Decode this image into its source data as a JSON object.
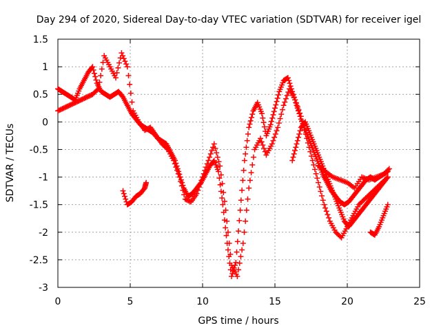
{
  "chart_data": {
    "type": "scatter",
    "title": "Day 294 of 2020, Sidereal Day-to-day VTEC variation (SDTVAR) for receiver igel",
    "xlabel": "GPS time / hours",
    "ylabel": "SDTVAR / TECUs",
    "xlim": [
      0,
      25
    ],
    "ylim": [
      -3,
      1.5
    ],
    "xticks": [
      "0",
      "5",
      "10",
      "15",
      "20",
      "25"
    ],
    "yticks": [
      "-3",
      "-2.5",
      "-2",
      "-1.5",
      "-1",
      "-0.5",
      "0",
      "0.5",
      "1",
      "1.5"
    ],
    "grid": true,
    "marker": "+",
    "color": "#ff0000",
    "series": [
      {
        "x": [
          0.0,
          0.3,
          0.6,
          0.9,
          1.2,
          1.5,
          1.8,
          2.1,
          2.4,
          2.7,
          3.0,
          3.3,
          3.6,
          3.9,
          4.2,
          4.5,
          4.8,
          5.1,
          5.4,
          5.7,
          6.0,
          6.3,
          6.6,
          6.9,
          7.2,
          7.5,
          7.8,
          8.1,
          8.4,
          8.7,
          9.0,
          9.3,
          9.6,
          9.9,
          10.2,
          10.5,
          10.8,
          11.1,
          11.4,
          11.7,
          12.0,
          12.3,
          12.6,
          12.9,
          13.2,
          13.5,
          13.8,
          14.1,
          14.4,
          14.7,
          15.0,
          15.3,
          15.6,
          15.9,
          16.2,
          16.5,
          16.8,
          17.1,
          17.4,
          17.7,
          18.0,
          18.3,
          18.6,
          18.9,
          19.2,
          19.5,
          19.8,
          20.1,
          20.4,
          20.7,
          21.0,
          21.3,
          21.6,
          21.9,
          22.2,
          22.5,
          22.8
        ],
        "y": [
          0.6,
          0.55,
          0.5,
          0.45,
          0.4,
          0.6,
          0.75,
          0.9,
          1.0,
          0.7,
          0.55,
          0.5,
          0.45,
          0.5,
          0.55,
          0.45,
          0.3,
          0.15,
          0.05,
          -0.05,
          -0.1,
          -0.15,
          -0.2,
          -0.3,
          -0.35,
          -0.4,
          -0.55,
          -0.7,
          -0.95,
          -1.2,
          -1.35,
          -1.3,
          -1.2,
          -1.1,
          -0.95,
          -0.8,
          -0.7,
          -0.9,
          -1.5,
          -2.2,
          -2.8,
          -2.55,
          -1.6,
          -0.7,
          -0.1,
          0.2,
          0.35,
          0.15,
          -0.25,
          -0.05,
          0.25,
          0.55,
          0.75,
          0.8,
          0.55,
          0.3,
          0.05,
          -0.15,
          -0.35,
          -0.55,
          -0.75,
          -0.95,
          -1.1,
          -1.25,
          -1.35,
          -1.45,
          -1.5,
          -1.45,
          -1.35,
          -1.25,
          -1.15,
          -1.05,
          -1.0,
          -1.05,
          -1.0,
          -0.95,
          -0.9
        ]
      },
      {
        "x": [
          0.0,
          0.4,
          0.8,
          1.2,
          1.6,
          2.0,
          2.4,
          2.8,
          3.2,
          3.6,
          4.0,
          4.4,
          4.8,
          5.2,
          5.6,
          6.0,
          6.4,
          6.8,
          7.2,
          7.6,
          8.0,
          8.4,
          8.8,
          9.2,
          9.6,
          10.0,
          10.4,
          10.8,
          11.2,
          11.6,
          12.0,
          12.4,
          12.8,
          13.2,
          13.6,
          14.0,
          14.4,
          14.8,
          15.2,
          15.6,
          16.0,
          16.4,
          16.8,
          17.2,
          17.6,
          18.0,
          18.4,
          18.8,
          19.2,
          19.6,
          20.0,
          20.4,
          20.8,
          21.2,
          21.6,
          22.0,
          22.4,
          22.8
        ],
        "y": [
          0.2,
          0.25,
          0.3,
          0.35,
          0.4,
          0.45,
          0.5,
          0.6,
          1.2,
          1.0,
          0.8,
          1.25,
          1.0,
          0.2,
          0.0,
          -0.15,
          -0.1,
          -0.25,
          -0.4,
          -0.5,
          -0.7,
          -1.0,
          -1.4,
          -1.45,
          -1.3,
          -1.0,
          -0.7,
          -0.4,
          -0.8,
          -1.6,
          -2.6,
          -2.8,
          -2.2,
          -1.2,
          -0.5,
          -0.3,
          -0.6,
          -0.4,
          -0.1,
          0.3,
          0.6,
          0.4,
          0.1,
          -0.3,
          -0.7,
          -1.1,
          -1.5,
          -1.8,
          -2.0,
          -2.1,
          -1.9,
          -1.7,
          -1.5,
          -1.4,
          -1.3,
          -1.2,
          -1.1,
          -1.0
        ]
      },
      {
        "x": [
          4.5,
          4.8,
          5.1,
          5.4,
          5.7,
          6.0,
          6.1
        ],
        "y": [
          -1.25,
          -1.5,
          -1.45,
          -1.35,
          -1.3,
          -1.2,
          -1.1
        ]
      },
      {
        "x": [
          16.2,
          16.5,
          16.8,
          17.1,
          17.4,
          17.7,
          18.0,
          18.3,
          18.6,
          18.9,
          19.2,
          19.5,
          19.8,
          20.1,
          20.4,
          20.7,
          21.0,
          21.3,
          21.6,
          21.9,
          22.2,
          22.5,
          22.8
        ],
        "y": [
          -0.7,
          -0.4,
          -0.1,
          0.0,
          -0.2,
          -0.4,
          -0.6,
          -0.8,
          -1.0,
          -1.2,
          -1.4,
          -1.6,
          -1.8,
          -1.9,
          -1.8,
          -1.7,
          -1.6,
          -1.5,
          -1.4,
          -1.3,
          -1.2,
          -1.1,
          -1.0
        ]
      },
      {
        "x": [
          21.6,
          21.9,
          22.2,
          22.5,
          22.8
        ],
        "y": [
          -2.0,
          -2.05,
          -1.9,
          -1.7,
          -1.5
        ]
      },
      {
        "x": [
          18.0,
          18.5,
          19.0,
          19.5,
          20.0,
          20.5,
          21.0,
          21.5,
          22.0,
          22.5,
          22.9
        ],
        "y": [
          -0.8,
          -0.9,
          -1.0,
          -1.05,
          -1.1,
          -1.2,
          -1.0,
          -1.05,
          -1.0,
          -0.95,
          -0.85
        ]
      }
    ]
  }
}
